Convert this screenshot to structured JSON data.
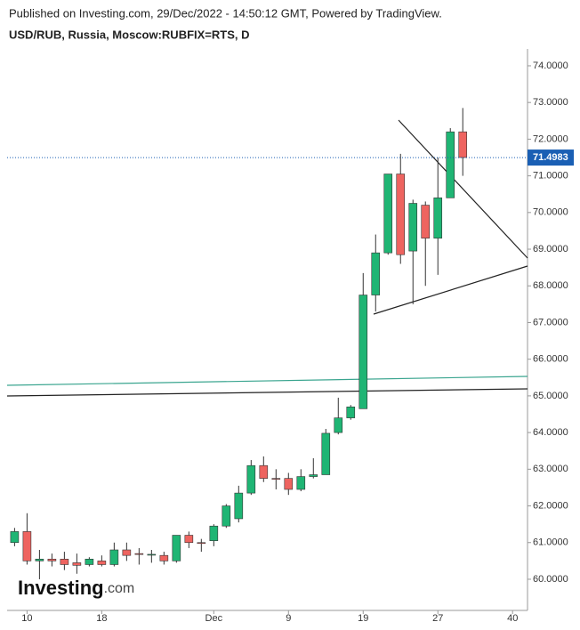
{
  "header": {
    "published": "Published on Investing.com, 29/Dec/2022 - 14:50:12 GMT, Powered by TradingView.",
    "symbol": "USD/RUB, Russia, Moscow:RUBFIX=RTS, D"
  },
  "logo": {
    "brand": "Investing",
    "suffix": ".com"
  },
  "chart_data": {
    "type": "candlestick",
    "up_color": "#1fb574",
    "down_color": "#ee6460",
    "open": [
      61.0,
      61.3,
      60.5,
      60.55,
      60.55,
      60.45,
      60.4,
      60.5,
      60.4,
      60.8,
      60.7,
      60.68,
      60.65,
      60.5,
      61.2,
      61.0,
      61.05,
      61.45,
      61.65,
      62.35,
      63.1,
      62.75,
      62.75,
      62.45,
      62.8,
      62.85,
      64.0,
      64.4,
      64.65,
      67.75,
      68.9,
      71.05,
      68.95,
      70.2,
      69.3,
      70.4,
      72.2
    ],
    "high": [
      61.4,
      61.8,
      60.8,
      60.7,
      60.75,
      60.7,
      60.6,
      60.65,
      61.0,
      61.0,
      60.85,
      60.8,
      60.75,
      61.2,
      61.3,
      61.1,
      61.5,
      62.05,
      62.55,
      63.25,
      63.35,
      63.0,
      62.9,
      63.0,
      63.3,
      64.1,
      64.95,
      64.75,
      68.35,
      69.4,
      71.05,
      71.6,
      70.35,
      70.3,
      71.5,
      72.3,
      72.85
    ],
    "low": [
      60.9,
      60.4,
      60.0,
      60.35,
      60.25,
      60.15,
      60.35,
      60.35,
      60.35,
      60.5,
      60.4,
      60.45,
      60.4,
      60.45,
      60.85,
      60.75,
      60.9,
      61.4,
      61.55,
      62.3,
      62.65,
      62.45,
      62.3,
      62.4,
      62.75,
      62.85,
      63.95,
      64.35,
      64.65,
      67.3,
      68.85,
      68.6,
      67.5,
      68.0,
      68.3,
      70.4,
      71.0
    ],
    "close": [
      61.3,
      60.5,
      60.55,
      60.5,
      60.4,
      60.38,
      60.55,
      60.4,
      60.8,
      60.65,
      60.68,
      60.68,
      60.5,
      61.2,
      61.0,
      60.98,
      61.45,
      62.0,
      62.35,
      63.1,
      62.75,
      62.73,
      62.45,
      62.8,
      62.85,
      63.98,
      64.4,
      64.7,
      67.75,
      68.9,
      71.05,
      68.85,
      70.25,
      69.3,
      70.4,
      72.2,
      71.5
    ],
    "last_price": 71.4983,
    "last_price_color": "#1a5fb4",
    "xlim": [
      -0.6,
      41.2
    ],
    "xticks": [
      {
        "value": 1,
        "label": "10"
      },
      {
        "value": 7,
        "label": "18"
      },
      {
        "value": 16,
        "label": "Dec"
      },
      {
        "value": 22,
        "label": "9"
      },
      {
        "value": 28,
        "label": "19"
      },
      {
        "value": 34,
        "label": "27"
      },
      40
    ],
    "ylim": [
      59.15,
      74.46
    ],
    "yticks": [
      {
        "value": 60,
        "label": "60.0000"
      },
      {
        "value": 61,
        "label": "61.0000"
      },
      {
        "value": 62,
        "label": "62.0000"
      },
      {
        "value": 63,
        "label": "63.0000"
      },
      {
        "value": 64,
        "label": "64.0000"
      },
      {
        "value": 65,
        "label": "65.0000"
      },
      {
        "value": 66,
        "label": "66.0000"
      },
      {
        "value": 67,
        "label": "67.0000"
      },
      {
        "value": 68,
        "label": "68.0000"
      },
      {
        "value": 69,
        "label": "69.0000"
      },
      {
        "value": 70,
        "label": "70.0000"
      },
      {
        "value": 71,
        "label": "71.0000"
      },
      {
        "value": 72,
        "label": "72.0000"
      },
      {
        "value": 73,
        "label": "73.0000"
      },
      {
        "value": 74,
        "label": "74.0000"
      }
    ]
  }
}
